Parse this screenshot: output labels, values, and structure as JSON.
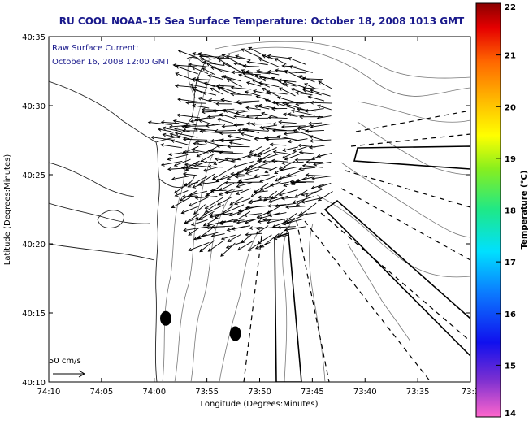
{
  "chart_data": {
    "type": "vector-field-map",
    "title": "RU COOL  NOAA–15  Sea Surface Temperature:  October 18, 2008 1013 GMT",
    "annotation_lines": [
      "Raw Surface Current:",
      "October 16, 2008 12:00 GMT"
    ],
    "xlabel": "Longitude (Degrees:Minutes)",
    "ylabel": "Latitude (Degrees:Minutes)",
    "x_ticks": [
      "74:10",
      "74:05",
      "74:00",
      "73:55",
      "73:50",
      "73:45",
      "73:40",
      "73:35",
      "73:3"
    ],
    "y_ticks": [
      "40:35",
      "40:30",
      "40:25",
      "40:20",
      "40:15",
      "40:10"
    ],
    "x_range_minutes_west": [
      70,
      30
    ],
    "y_range_minutes_north": [
      10,
      35
    ],
    "scale_label": "50 cm/s",
    "colorbar": {
      "label": "Temperature (°C)",
      "ticks": [
        "22",
        "21",
        "20",
        "19",
        "18",
        "17",
        "16",
        "15",
        "14"
      ],
      "range": [
        14,
        22
      ]
    },
    "buoys": [
      {
        "lon_min_w": 58.9,
        "lat_min_n": 14.6
      },
      {
        "lon_min_w": 52.3,
        "lat_min_n": 13.5
      }
    ],
    "current_vectors_summary": "predominantly westward/southwestward surface currents in the Raritan Bay apex region, 40:20N-40:33N, 73:45W-73:56W",
    "color_stops": [
      "#ff66cc",
      "#7b2fd1",
      "#1010ee",
      "#0b7bff",
      "#00e0ff",
      "#1ee888",
      "#88ef1e",
      "#ffff00",
      "#ffbe00",
      "#ff6600",
      "#e60000",
      "#8a0000"
    ]
  }
}
